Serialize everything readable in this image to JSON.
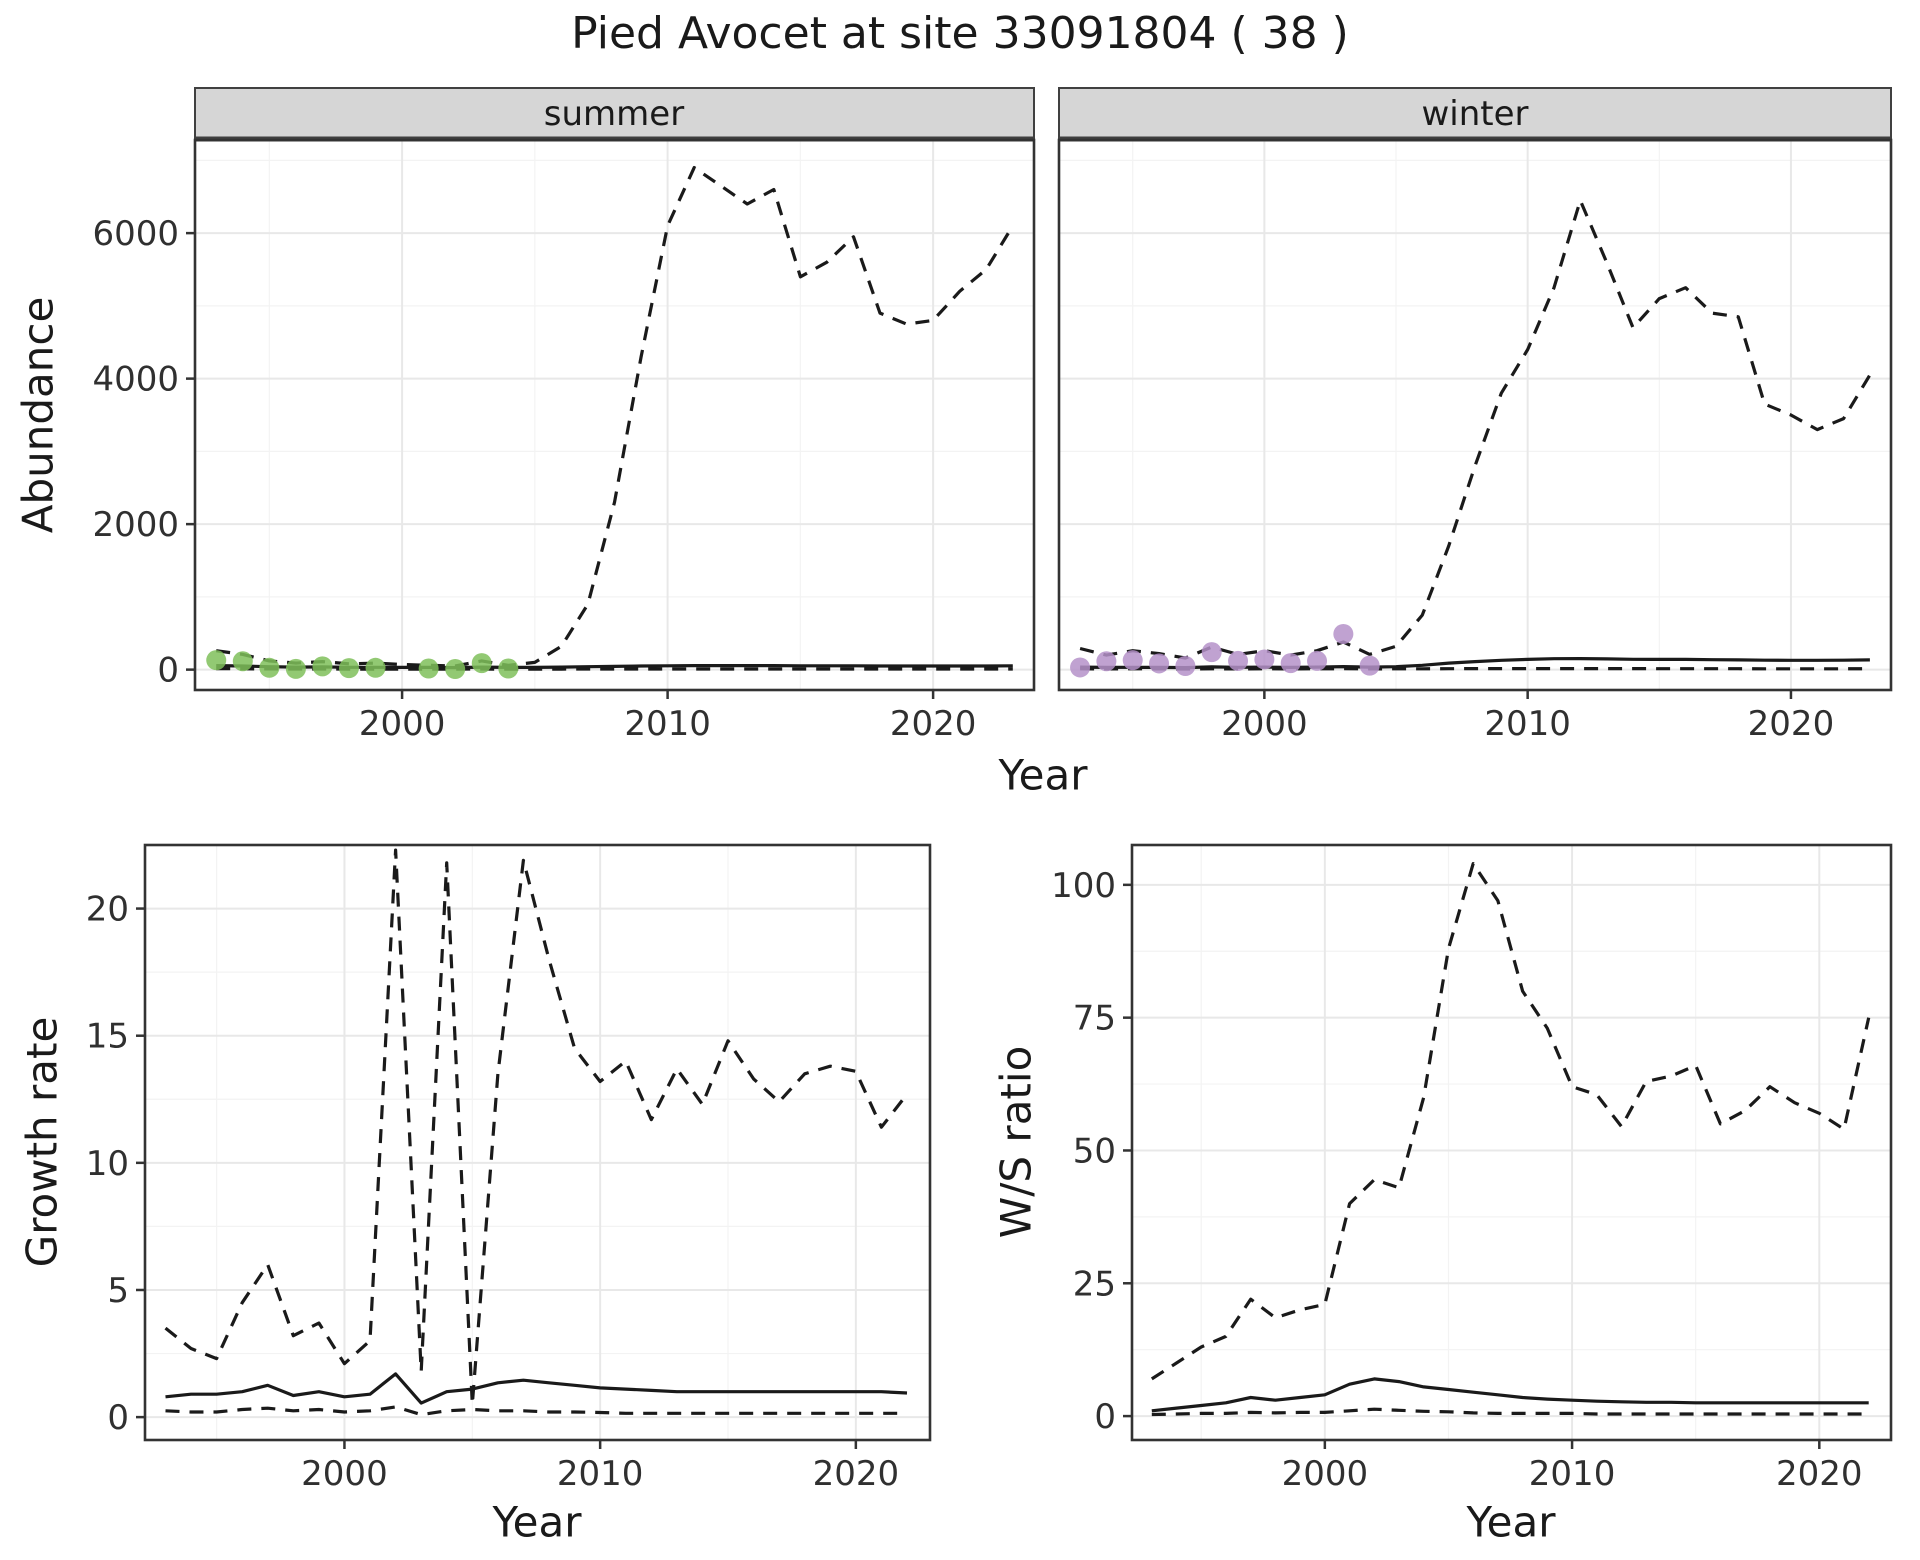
{
  "title": "Pied Avocet at site 33091804 ( 38 )",
  "colors": {
    "line": "#1a1a1a",
    "summer_points": "#7fbf5a",
    "winter_points": "#b592c9",
    "strip_bg": "#d6d6d6",
    "strip_border": "#404040",
    "panel_border": "#333333",
    "grid_major": "#e8e8e8",
    "grid_minor": "#f3f3f3",
    "tick_text": "#303030"
  },
  "chart_data": [
    {
      "id": "abundance-summer",
      "type": "line",
      "title": "summer",
      "xlabel": "Year",
      "ylabel": "Abundance",
      "xlim": [
        1992.2,
        2023.8
      ],
      "ylim": [
        -280,
        7280
      ],
      "xticks": [
        2000,
        2010,
        2020
      ],
      "yticks": [
        0,
        2000,
        4000,
        6000
      ],
      "x": [
        1993,
        1994,
        1995,
        1996,
        1997,
        1998,
        1999,
        2000,
        2001,
        2002,
        2003,
        2004,
        2005,
        2006,
        2007,
        2008,
        2009,
        2010,
        2011,
        2012,
        2013,
        2014,
        2015,
        2016,
        2017,
        2018,
        2019,
        2020,
        2021,
        2022,
        2023
      ],
      "series": [
        {
          "name": "upper-ci",
          "style": "dashed",
          "values": [
            260,
            210,
            120,
            90,
            110,
            80,
            90,
            70,
            60,
            50,
            120,
            60,
            100,
            320,
            900,
            2300,
            4300,
            6100,
            6900,
            6650,
            6400,
            6600,
            5400,
            5600,
            5950,
            4900,
            4750,
            4800,
            5200,
            5500,
            6100
          ]
        },
        {
          "name": "median",
          "style": "solid",
          "values": [
            55,
            50,
            40,
            35,
            38,
            32,
            32,
            30,
            30,
            28,
            35,
            30,
            30,
            35,
            40,
            45,
            50,
            52,
            55,
            55,
            55,
            55,
            52,
            52,
            52,
            50,
            50,
            50,
            50,
            50,
            52
          ]
        },
        {
          "name": "lower-ci",
          "style": "dashed",
          "values": [
            14,
            12,
            10,
            8,
            8,
            7,
            7,
            7,
            6,
            6,
            8,
            6,
            6,
            7,
            8,
            8,
            9,
            9,
            9,
            9,
            9,
            9,
            9,
            9,
            9,
            9,
            9,
            9,
            9,
            9,
            9
          ]
        },
        {
          "name": "observed-counts",
          "style": "points",
          "color": "#7fbf5a",
          "x": [
            1993,
            1994,
            1995,
            1996,
            1997,
            1998,
            1999,
            2001,
            2002,
            2003,
            2004
          ],
          "y": [
            130,
            115,
            25,
            10,
            45,
            20,
            25,
            15,
            8,
            90,
            15
          ]
        }
      ]
    },
    {
      "id": "abundance-winter",
      "type": "line",
      "title": "winter",
      "xlabel": "Year",
      "ylabel": "Abundance",
      "xlim": [
        1992.2,
        2023.8
      ],
      "ylim": [
        -280,
        7280
      ],
      "xticks": [
        2000,
        2010,
        2020
      ],
      "yticks": [
        0,
        2000,
        4000,
        6000
      ],
      "x": [
        1993,
        1994,
        1995,
        1996,
        1997,
        1998,
        1999,
        2000,
        2001,
        2002,
        2003,
        2004,
        2005,
        2006,
        2007,
        2008,
        2009,
        2010,
        2011,
        2012,
        2013,
        2014,
        2015,
        2016,
        2017,
        2018,
        2019,
        2020,
        2021,
        2022,
        2023
      ],
      "series": [
        {
          "name": "upper-ci",
          "style": "dashed",
          "values": [
            290,
            200,
            260,
            220,
            160,
            310,
            210,
            260,
            200,
            260,
            380,
            210,
            320,
            750,
            1700,
            2800,
            3800,
            4400,
            5250,
            6450,
            5600,
            4700,
            5100,
            5250,
            4900,
            4850,
            3650,
            3500,
            3300,
            3450,
            4050
          ]
        },
        {
          "name": "median",
          "style": "solid",
          "values": [
            35,
            30,
            32,
            30,
            28,
            38,
            32,
            35,
            30,
            35,
            42,
            35,
            40,
            60,
            90,
            110,
            128,
            140,
            150,
            152,
            148,
            142,
            140,
            140,
            136,
            134,
            130,
            128,
            128,
            130,
            134
          ]
        },
        {
          "name": "lower-ci",
          "style": "dashed",
          "values": [
            12,
            10,
            11,
            10,
            9,
            12,
            10,
            11,
            10,
            11,
            13,
            10,
            11,
            12,
            13,
            14,
            14,
            14,
            14,
            14,
            14,
            14,
            13,
            13,
            13,
            13,
            12,
            12,
            12,
            12,
            13
          ]
        },
        {
          "name": "observed-counts",
          "style": "points",
          "color": "#b592c9",
          "x": [
            1993,
            1994,
            1995,
            1996,
            1997,
            1998,
            1999,
            2000,
            2001,
            2002,
            2003,
            2004
          ],
          "y": [
            30,
            115,
            130,
            85,
            50,
            240,
            120,
            140,
            90,
            120,
            490,
            55
          ]
        }
      ]
    },
    {
      "id": "growth-rate",
      "type": "line",
      "title": "",
      "xlabel": "Year",
      "ylabel": "Growth rate",
      "xlim": [
        1992.2,
        2022.9
      ],
      "ylim": [
        -0.9,
        22.5
      ],
      "xticks": [
        2000,
        2010,
        2020
      ],
      "yticks": [
        0,
        5,
        10,
        15,
        20
      ],
      "x": [
        1993,
        1994,
        1995,
        1996,
        1997,
        1998,
        1999,
        2000,
        2001,
        2002,
        2003,
        2004,
        2005,
        2006,
        2007,
        2008,
        2009,
        2010,
        2011,
        2012,
        2013,
        2014,
        2015,
        2016,
        2017,
        2018,
        2019,
        2020,
        2021,
        2022
      ],
      "series": [
        {
          "name": "upper-ci",
          "style": "dashed",
          "values": [
            3.5,
            2.7,
            2.3,
            4.5,
            6.0,
            3.2,
            3.7,
            2.1,
            3.0,
            22.3,
            1.8,
            21.8,
            0.5,
            13.5,
            21.9,
            18.0,
            14.5,
            13.2,
            14.0,
            11.7,
            13.7,
            12.3,
            14.8,
            13.3,
            12.4,
            13.5,
            13.8,
            13.6,
            11.4,
            12.7
          ]
        },
        {
          "name": "median",
          "style": "solid",
          "values": [
            0.8,
            0.9,
            0.9,
            1.0,
            1.25,
            0.85,
            1.0,
            0.8,
            0.9,
            1.7,
            0.55,
            1.0,
            1.1,
            1.35,
            1.45,
            1.35,
            1.25,
            1.15,
            1.1,
            1.05,
            1.0,
            1.0,
            1.0,
            1.0,
            1.0,
            1.0,
            1.0,
            1.0,
            1.0,
            0.95
          ]
        },
        {
          "name": "lower-ci",
          "style": "dashed",
          "values": [
            0.25,
            0.2,
            0.2,
            0.3,
            0.35,
            0.25,
            0.3,
            0.2,
            0.25,
            0.4,
            0.1,
            0.25,
            0.3,
            0.25,
            0.25,
            0.2,
            0.2,
            0.18,
            0.15,
            0.15,
            0.15,
            0.15,
            0.15,
            0.15,
            0.15,
            0.15,
            0.15,
            0.15,
            0.15,
            0.15
          ]
        }
      ]
    },
    {
      "id": "ws-ratio",
      "type": "line",
      "title": "",
      "xlabel": "Year",
      "ylabel": "W/S ratio",
      "xlim": [
        1992.2,
        2022.9
      ],
      "ylim": [
        -4.5,
        107.5
      ],
      "xticks": [
        2000,
        2010,
        2020
      ],
      "yticks": [
        0,
        25,
        50,
        75,
        100
      ],
      "x": [
        1993,
        1994,
        1995,
        1996,
        1997,
        1998,
        1999,
        2000,
        2001,
        2002,
        2003,
        2004,
        2005,
        2006,
        2007,
        2008,
        2009,
        2010,
        2011,
        2012,
        2013,
        2014,
        2015,
        2016,
        2017,
        2018,
        2019,
        2020,
        2021,
        2022
      ],
      "series": [
        {
          "name": "upper-ci",
          "style": "dashed",
          "values": [
            7,
            10,
            13,
            15,
            22,
            18.5,
            20,
            21,
            40,
            44.5,
            43,
            60,
            88,
            104,
            97,
            80,
            73,
            62,
            60.5,
            54.5,
            63,
            64,
            66,
            55,
            57.5,
            62,
            59,
            57,
            54,
            75
          ]
        },
        {
          "name": "median",
          "style": "solid",
          "values": [
            1,
            1.5,
            2,
            2.5,
            3.5,
            3,
            3.5,
            4,
            6,
            7,
            6.5,
            5.5,
            5,
            4.5,
            4,
            3.5,
            3.2,
            3,
            2.8,
            2.7,
            2.6,
            2.6,
            2.5,
            2.5,
            2.5,
            2.5,
            2.5,
            2.5,
            2.5,
            2.5
          ]
        },
        {
          "name": "lower-ci",
          "style": "dashed",
          "values": [
            0.3,
            0.4,
            0.5,
            0.5,
            0.7,
            0.6,
            0.7,
            0.7,
            1.0,
            1.3,
            1.1,
            0.9,
            0.8,
            0.6,
            0.5,
            0.5,
            0.5,
            0.5,
            0.4,
            0.4,
            0.4,
            0.4,
            0.4,
            0.4,
            0.4,
            0.4,
            0.4,
            0.4,
            0.4,
            0.4
          ]
        }
      ]
    }
  ]
}
